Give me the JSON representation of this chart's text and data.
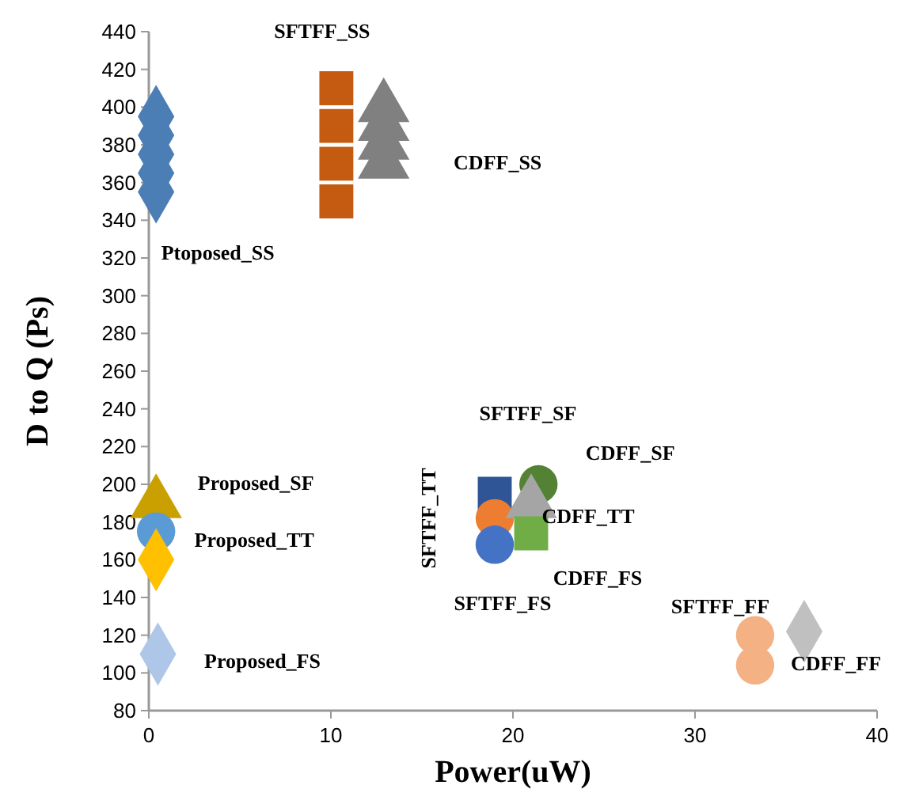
{
  "chart_data": {
    "type": "scatter",
    "xlabel": "Power(uW)",
    "ylabel": "D to Q (Ps)",
    "xlim": [
      0,
      40
    ],
    "xticks": [
      0,
      10,
      20,
      30,
      40
    ],
    "ylim": [
      80,
      440
    ],
    "yticks": [
      80,
      100,
      120,
      140,
      160,
      180,
      200,
      220,
      240,
      260,
      280,
      300,
      320,
      340,
      360,
      380,
      400,
      420,
      440
    ],
    "grid": false,
    "series": [
      {
        "name": "Ptoposed_SS",
        "color": "#4a7eb5",
        "marker": "diamond",
        "x": [
          0.4,
          0.4,
          0.4,
          0.4,
          0.4
        ],
        "values": [
          355,
          365,
          375,
          385,
          395
        ]
      },
      {
        "name": "SFTFF_SS",
        "color": "#c55a11",
        "marker": "square",
        "x": [
          10.3,
          10.3,
          10.3,
          10.3
        ],
        "values": [
          350,
          370,
          390,
          410
        ]
      },
      {
        "name": "CDFF_SS",
        "color": "#808080",
        "marker": "triangle",
        "x": [
          12.9,
          12.9,
          12.9,
          12.9
        ],
        "values": [
          370,
          380,
          390,
          400
        ]
      },
      {
        "name": "Proposed_SF",
        "color": "#c9a000",
        "marker": "triangle",
        "x": [
          0.4
        ],
        "values": [
          190
        ]
      },
      {
        "name": "Proposed_TT",
        "color": "#5b9bd5",
        "marker": "circle",
        "x": [
          0.4
        ],
        "values": [
          175
        ]
      },
      {
        "color": "#ffc000",
        "marker": "diamond",
        "x": [
          0.4
        ],
        "values": [
          160
        ]
      },
      {
        "name": "Proposed_FS",
        "color": "#aec7e8",
        "marker": "diamond",
        "x": [
          0.5
        ],
        "values": [
          110
        ]
      },
      {
        "name": "SFTFF_SF",
        "color": "#2f5597",
        "marker": "square",
        "x": [
          19
        ],
        "values": [
          195
        ]
      },
      {
        "name": "SFTFF_TT",
        "color": "#ed7d31",
        "marker": "circle",
        "x": [
          19
        ],
        "values": [
          182
        ]
      },
      {
        "name": "SFTFF_FS",
        "color": "#4472c4",
        "marker": "circle",
        "x": [
          19
        ],
        "values": [
          168
        ]
      },
      {
        "name": "CDFF_SF",
        "color": "#548235",
        "marker": "circle",
        "x": [
          21.4
        ],
        "values": [
          200
        ]
      },
      {
        "name": "CDFF_TT",
        "color": "#a5a5a5",
        "marker": "triangle",
        "x": [
          21
        ],
        "values": [
          190
        ]
      },
      {
        "name": "CDFF_FS",
        "color": "#70ad47",
        "marker": "square",
        "x": [
          21
        ],
        "values": [
          174
        ]
      },
      {
        "name": "SFTFF_FF",
        "color": "#f4b183",
        "marker": "circle",
        "x": [
          33.3,
          33.3
        ],
        "values": [
          104,
          120
        ]
      },
      {
        "name": "CDFF_FF",
        "color": "#c0c0c0",
        "marker": "diamond",
        "x": [
          36
        ],
        "values": [
          122
        ]
      }
    ]
  }
}
